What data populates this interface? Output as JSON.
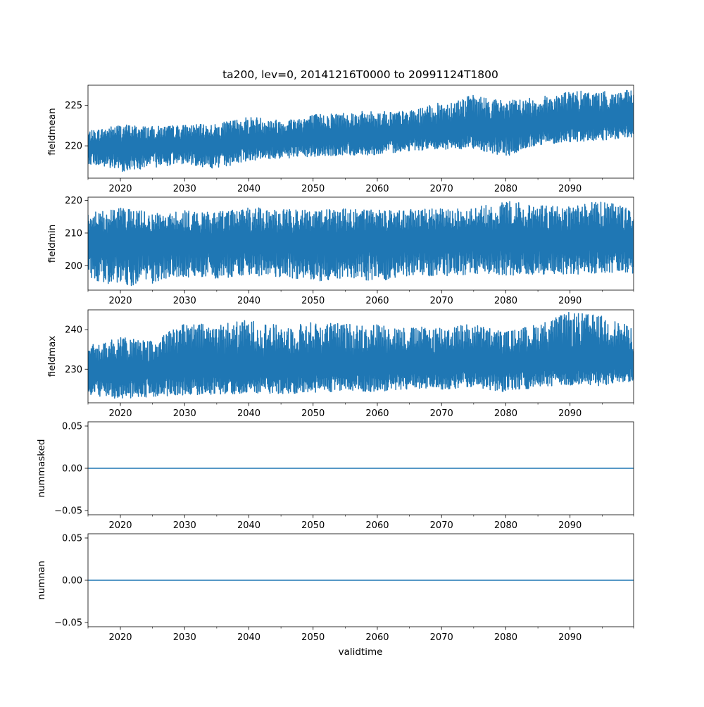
{
  "title": "ta200, lev=0, 20141216T0000 to 20991124T1800",
  "xlabel": "validtime",
  "xticks": [
    "2020",
    "2030",
    "2040",
    "2050",
    "2060",
    "2070",
    "2080",
    "2090"
  ],
  "line_color": "#1f77b4",
  "chart_data": [
    {
      "type": "line",
      "ylabel": "fieldmean",
      "xlim": [
        "2014-12-16",
        "2099-11-24"
      ],
      "ylim": [
        216,
        227.5
      ],
      "yticks": [
        "220",
        "225"
      ],
      "x": [
        2015,
        2020,
        2025,
        2030,
        2035,
        2040,
        2045,
        2050,
        2055,
        2060,
        2065,
        2070,
        2075,
        2080,
        2085,
        2090,
        2095,
        2099.9
      ],
      "series": [
        {
          "values": [
            219.8,
            219.7,
            219.9,
            220.1,
            220.0,
            220.4,
            220.6,
            220.8,
            221.2,
            221.1,
            221.6,
            221.6,
            222.0,
            222.1,
            222.4,
            222.8,
            223.0,
            223.3
          ],
          "envelope_low": [
            217.8,
            216.8,
            217.3,
            217.8,
            217.1,
            218.2,
            218.4,
            218.6,
            218.8,
            218.9,
            219.4,
            219.5,
            219.7,
            218.6,
            220.1,
            220.5,
            220.6,
            221.0
          ],
          "envelope_high": [
            221.8,
            222.7,
            222.4,
            222.6,
            222.7,
            223.7,
            223.2,
            223.9,
            224.2,
            224.3,
            224.3,
            225.4,
            226.3,
            225.6,
            226.0,
            226.8,
            226.7,
            226.9
          ]
        }
      ]
    },
    {
      "type": "line",
      "ylabel": "fieldmin",
      "xlim": [
        "2014-12-16",
        "2099-11-24"
      ],
      "ylim": [
        192.5,
        221
      ],
      "yticks": [
        "200",
        "210",
        "220"
      ],
      "x": [
        2015,
        2020,
        2025,
        2030,
        2035,
        2040,
        2045,
        2050,
        2055,
        2060,
        2065,
        2070,
        2075,
        2080,
        2085,
        2090,
        2095,
        2099.9
      ],
      "series": [
        {
          "values": [
            207.0,
            207.0,
            207.1,
            207.0,
            207.2,
            207.2,
            207.3,
            207.1,
            207.3,
            207.2,
            207.4,
            207.3,
            207.5,
            207.5,
            207.6,
            207.5,
            207.7,
            207.6
          ],
          "envelope_low": [
            196.0,
            193.5,
            194.5,
            196.5,
            196.0,
            196.8,
            196.5,
            195.0,
            196.2,
            195.2,
            197.0,
            196.8,
            197.2,
            197.0,
            197.3,
            197.2,
            197.5,
            197.0
          ],
          "envelope_high": [
            216.0,
            218.0,
            216.5,
            217.0,
            216.5,
            217.8,
            217.5,
            217.0,
            217.5,
            217.0,
            217.2,
            217.5,
            217.8,
            220.0,
            218.5,
            218.0,
            220.0,
            217.0
          ]
        }
      ]
    },
    {
      "type": "line",
      "ylabel": "fieldmax",
      "xlim": [
        "2014-12-16",
        "2099-11-24"
      ],
      "ylim": [
        221.5,
        245
      ],
      "yticks": [
        "230",
        "240"
      ],
      "x": [
        2015,
        2020,
        2025,
        2030,
        2035,
        2040,
        2045,
        2050,
        2055,
        2060,
        2065,
        2070,
        2075,
        2080,
        2085,
        2090,
        2095,
        2099.9
      ],
      "series": [
        {
          "values": [
            229.5,
            229.3,
            229.6,
            229.8,
            229.7,
            230.0,
            230.1,
            230.3,
            230.5,
            230.4,
            230.7,
            230.8,
            230.9,
            231.0,
            231.2,
            231.5,
            231.6,
            231.7
          ],
          "envelope_low": [
            223.5,
            222.5,
            223.0,
            223.5,
            223.5,
            224.0,
            223.8,
            224.0,
            224.5,
            224.3,
            225.0,
            224.8,
            225.5,
            224.0,
            225.5,
            225.8,
            225.8,
            227.0
          ],
          "envelope_high": [
            236.0,
            238.0,
            237.5,
            241.5,
            241.5,
            242.5,
            241.0,
            242.0,
            241.5,
            241.5,
            240.5,
            241.0,
            241.5,
            239.5,
            241.5,
            244.5,
            243.5,
            240.5
          ]
        }
      ]
    },
    {
      "type": "line",
      "ylabel": "nummasked",
      "xlim": [
        "2014-12-16",
        "2099-11-24"
      ],
      "ylim": [
        -0.055,
        0.055
      ],
      "yticks": [
        "−0.05",
        "0.00",
        "0.05"
      ],
      "x": [
        2015,
        2099.9
      ],
      "series": [
        {
          "values": [
            0,
            0
          ]
        }
      ]
    },
    {
      "type": "line",
      "ylabel": "numnan",
      "xlim": [
        "2014-12-16",
        "2099-11-24"
      ],
      "ylim": [
        -0.055,
        0.055
      ],
      "yticks": [
        "−0.05",
        "0.00",
        "0.05"
      ],
      "x": [
        2015,
        2099.9
      ],
      "series": [
        {
          "values": [
            0,
            0
          ]
        }
      ]
    }
  ]
}
